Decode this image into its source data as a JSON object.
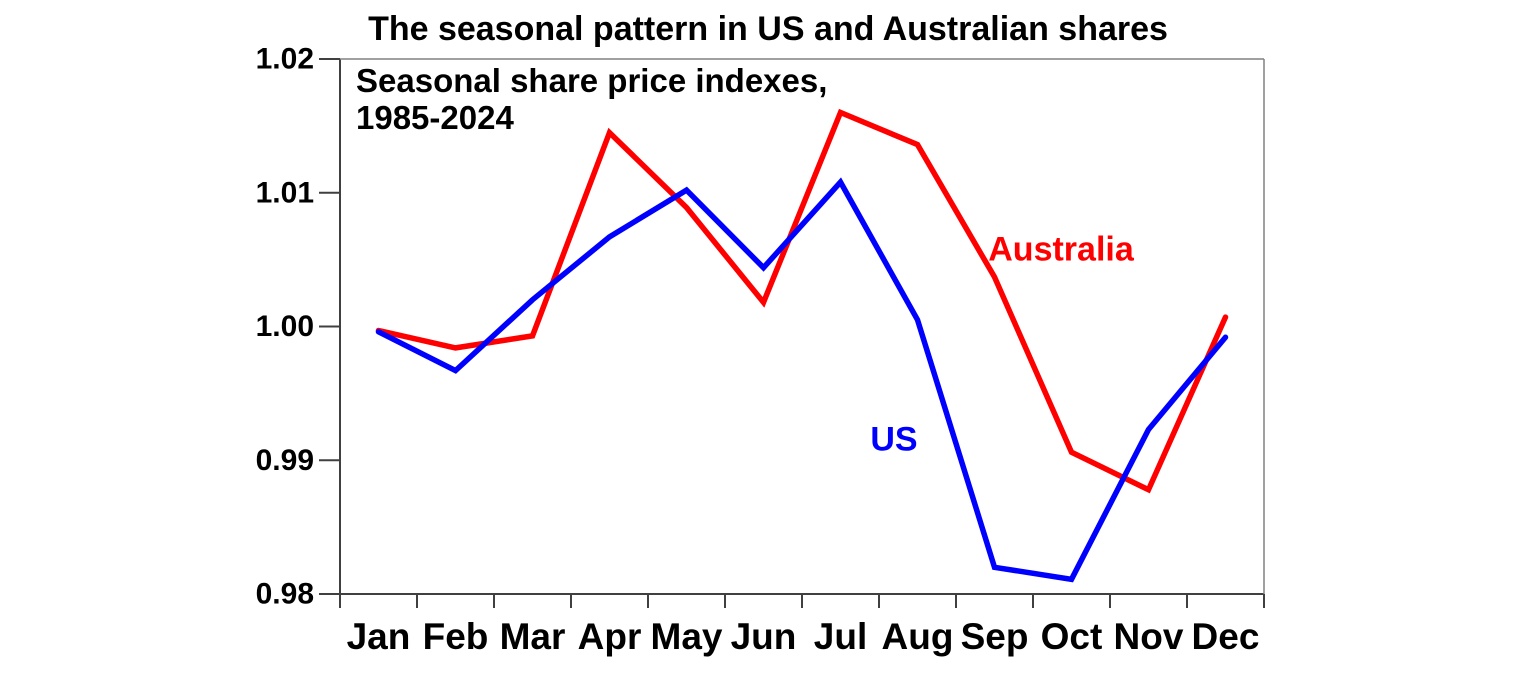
{
  "chart_data": {
    "type": "line",
    "title": "The seasonal pattern in US and Australian shares",
    "annotation_lines": [
      "Seasonal share price indexes,",
      "1985-2024"
    ],
    "categories": [
      "Jan",
      "Feb",
      "Mar",
      "Apr",
      "May",
      "Jun",
      "Jul",
      "Aug",
      "Sep",
      "Oct",
      "Nov",
      "Dec"
    ],
    "series": [
      {
        "name": "Australia",
        "color": "#ff0000",
        "values": [
          0.9997,
          0.9984,
          0.9993,
          1.0145,
          1.0089,
          1.0018,
          1.016,
          1.0136,
          1.0037,
          0.9906,
          0.9878,
          1.0007
        ]
      },
      {
        "name": "US",
        "color": "#0000ff",
        "values": [
          0.9996,
          0.9967,
          1.002,
          1.0067,
          1.0102,
          1.0044,
          1.0108,
          1.0005,
          0.982,
          0.9811,
          0.9923,
          0.9992
        ]
      }
    ],
    "ylim": [
      0.98,
      1.02
    ],
    "yticks": [
      1.02,
      1.01,
      1.0,
      0.99,
      0.98
    ],
    "ytick_labels": [
      "1.02",
      "1.01",
      "1.00",
      "0.99",
      "0.98"
    ],
    "xlabel": "",
    "ylabel": "",
    "grid": false,
    "legend": "inline-labels",
    "axis_color": "#404040",
    "frame_color": "#808080"
  }
}
